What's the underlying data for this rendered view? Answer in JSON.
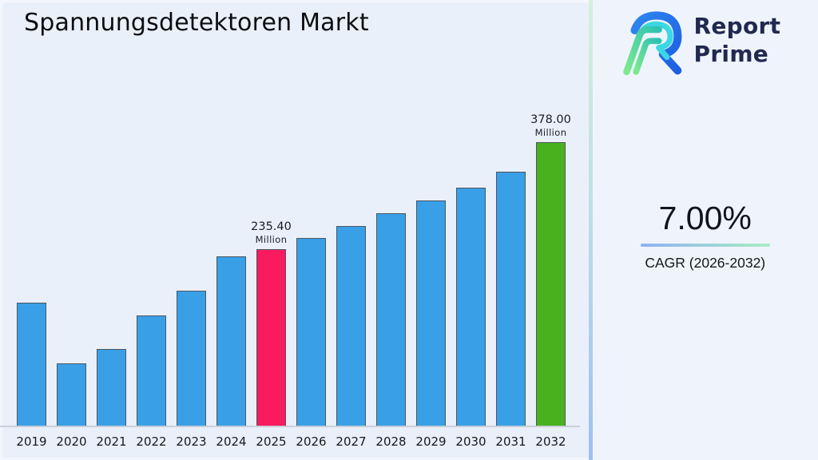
{
  "page": {
    "title": "Spannungsdetektoren Markt"
  },
  "logo": {
    "name": "Report Prime",
    "line1": "Report",
    "line2": "Prime",
    "icon": "report-prime-monogram-icon",
    "colors": {
      "text_navy": "#20294F",
      "mark_blue": "#1E6EE8",
      "mark_cyan": "#3BD7E3",
      "mark_green_light": "#7FE98F",
      "mark_teal": "#2DC3B2"
    }
  },
  "cagr": {
    "value": "7.00%",
    "label": "CAGR (2026-2032)",
    "underline_gradient": [
      "#8FB2F1",
      "#A9EDC3"
    ]
  },
  "chart_data": {
    "type": "bar",
    "title": "Spannungsdetektoren Markt",
    "xlabel": "",
    "ylabel": "",
    "unit": "Million",
    "categories": [
      "2019",
      "2020",
      "2021",
      "2022",
      "2023",
      "2024",
      "2025",
      "2026",
      "2027",
      "2028",
      "2029",
      "2030",
      "2031",
      "2032"
    ],
    "values": [
      165,
      84,
      103,
      148,
      180,
      226,
      235.4,
      251,
      267,
      284,
      301,
      318,
      339,
      378
    ],
    "labeled_bars": [
      {
        "category": "2025",
        "value_label": "235.40",
        "unit_label": "Million"
      },
      {
        "category": "2032",
        "value_label": "378.00",
        "unit_label": "Million"
      }
    ],
    "bar_colors": {
      "default": "#399FE7",
      "2025": "#F91A5F",
      "2032": "#49B11E"
    },
    "edge_color": "#4D5761",
    "ylim": [
      0,
      400
    ],
    "grid": false,
    "legend": false,
    "y_axis_visible": false
  },
  "panel": {
    "separator_gradient": [
      "#D2F0DC",
      "#9DBFF3"
    ]
  }
}
